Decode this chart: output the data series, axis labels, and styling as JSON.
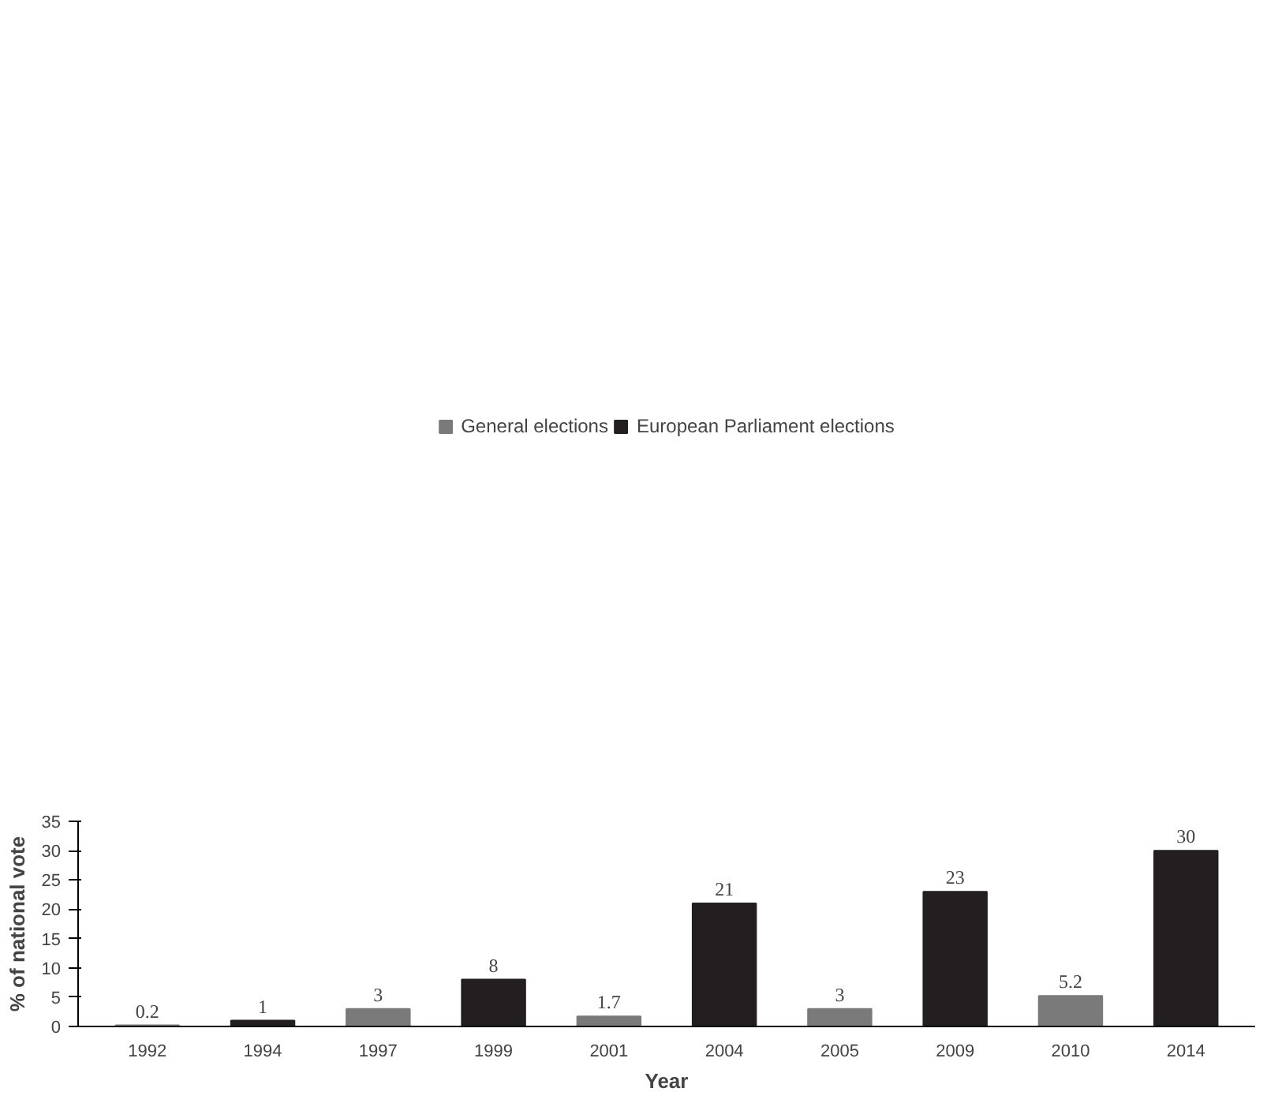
{
  "chart_data": {
    "type": "bar",
    "xlabel": "Year",
    "ylabel": "% of national vote",
    "categories": [
      "1992",
      "1994",
      "1997",
      "1999",
      "2001",
      "2004",
      "2005",
      "2009",
      "2010",
      "2014"
    ],
    "series": [
      {
        "name": "General elections",
        "color": "#7a7a7a",
        "values": [
          0.2,
          null,
          3,
          null,
          1.7,
          null,
          3,
          null,
          5.2,
          null
        ]
      },
      {
        "name": "European Parliament elections",
        "color": "#231f20",
        "values": [
          null,
          1,
          null,
          8,
          null,
          21,
          null,
          23,
          null,
          30
        ]
      }
    ],
    "ylim": [
      0,
      35
    ],
    "yticks": [
      0,
      5,
      10,
      15,
      20,
      25,
      30,
      35
    ],
    "grid": false,
    "legend": "top",
    "data_labels": true
  }
}
